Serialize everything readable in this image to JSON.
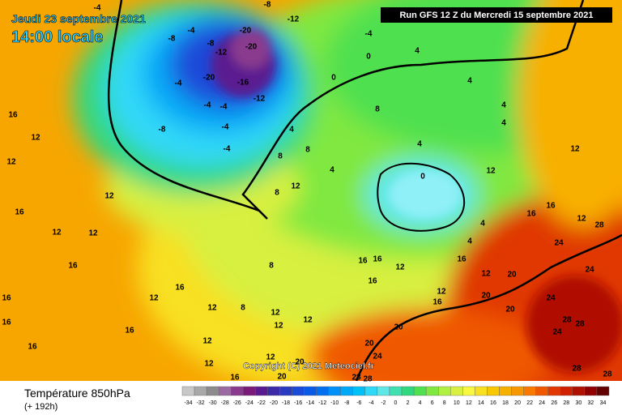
{
  "header": {
    "date": "Jeudi 23 septembre 2021",
    "time": "14:00 locale",
    "run": "Run GFS 12 Z du Mercredi 15 septembre 2021"
  },
  "copyright": "Copyright (C) 2021 Meteociel.fr",
  "footer": {
    "title": "Température 850hPa",
    "lead": "(+ 192h)"
  },
  "scale": {
    "values": [
      -34,
      -32,
      -30,
      -28,
      -26,
      -24,
      -22,
      -20,
      -18,
      -16,
      -14,
      -12,
      -10,
      -8,
      -6,
      -4,
      -2,
      0,
      2,
      4,
      6,
      8,
      10,
      12,
      14,
      16,
      18,
      20,
      22,
      24,
      26,
      28,
      30,
      32,
      34
    ],
    "colors": [
      "#c8c8c8",
      "#a8a8a8",
      "#8c8c8c",
      "#9a6aa0",
      "#8a3a8e",
      "#7a1a7a",
      "#5a1a90",
      "#3a2aa8",
      "#2a3ac0",
      "#1a4ad8",
      "#0a5ae8",
      "#0070f0",
      "#0090f8",
      "#00a8f8",
      "#00c0f8",
      "#30d8f8",
      "#60e8e8",
      "#40e0b0",
      "#30d880",
      "#50e050",
      "#80e840",
      "#b0f040",
      "#d8f040",
      "#f8f840",
      "#f8e020",
      "#f8c800",
      "#f8b000",
      "#f89800",
      "#f87800",
      "#f05800",
      "#e03800",
      "#d02000",
      "#b01000",
      "#900000",
      "#600000"
    ]
  },
  "contour_labels": [
    -8,
    -12,
    -20,
    -20,
    -20,
    -16,
    -12,
    -8,
    -8,
    -4,
    -12,
    -4,
    -4,
    -4,
    -4,
    -4,
    -8,
    -4,
    0,
    0,
    -4,
    4,
    4,
    4,
    4,
    4,
    8,
    8,
    8,
    8,
    12,
    8,
    4,
    4,
    0,
    4,
    4,
    12,
    20,
    24,
    28,
    12,
    12,
    12,
    16,
    16,
    24,
    24,
    28,
    28,
    24,
    28,
    28,
    20,
    20,
    20,
    24,
    20,
    28,
    28,
    20,
    20,
    12,
    16,
    12,
    12,
    12,
    8,
    12,
    12,
    12,
    16,
    16,
    12,
    16,
    16,
    16,
    16,
    12,
    12,
    16,
    12,
    16,
    12,
    12,
    16,
    12,
    16,
    16,
    16,
    12,
    16
  ]
}
